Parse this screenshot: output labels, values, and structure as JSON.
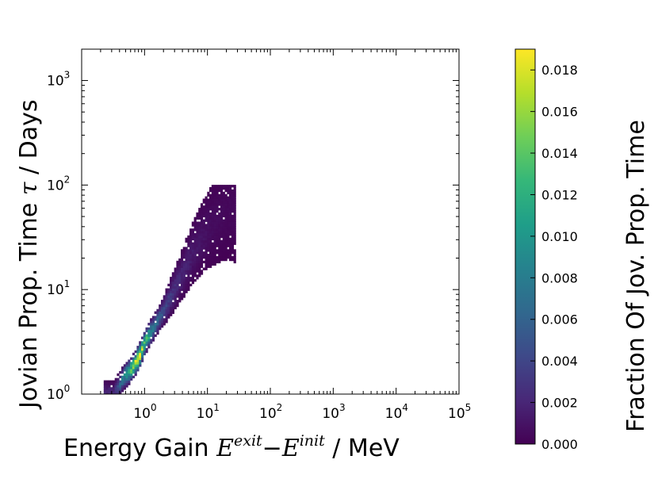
{
  "chart_data": {
    "type": "heatmap",
    "scale": "log-log 2D histogram",
    "xlabel": {
      "prefix": "Energy Gain ",
      "math_e": "E",
      "sup_exit": "exit",
      "minus": "−",
      "sup_init": "init",
      "suffix": " / MeV"
    },
    "ylabel": {
      "prefix": "Jovian Prop. Time ",
      "math_tau": "τ",
      "suffix": " / Days"
    },
    "x_range_log10": [
      -1.0,
      5.0
    ],
    "y_range_log10": [
      0.0,
      3.3
    ],
    "x_ticks": [
      {
        "base": "10",
        "exp": "0",
        "log": 0
      },
      {
        "base": "10",
        "exp": "1",
        "log": 1
      },
      {
        "base": "10",
        "exp": "2",
        "log": 2
      },
      {
        "base": "10",
        "exp": "3",
        "log": 3
      },
      {
        "base": "10",
        "exp": "4",
        "log": 4
      },
      {
        "base": "10",
        "exp": "5",
        "log": 5
      }
    ],
    "y_ticks": [
      {
        "base": "10",
        "exp": "0",
        "log": 0
      },
      {
        "base": "10",
        "exp": "1",
        "log": 1
      },
      {
        "base": "10",
        "exp": "2",
        "log": 2
      },
      {
        "base": "10",
        "exp": "3",
        "log": 3
      }
    ],
    "density_model": {
      "ridge": [
        {
          "log_x": -0.5,
          "log_y": 0.0,
          "v": 0.002
        },
        {
          "log_x": -0.35,
          "log_y": 0.15,
          "v": 0.008
        },
        {
          "log_x": -0.2,
          "log_y": 0.25,
          "v": 0.015
        },
        {
          "log_x": -0.1,
          "log_y": 0.35,
          "v": 0.018
        },
        {
          "log_x": 0.0,
          "log_y": 0.5,
          "v": 0.013
        },
        {
          "log_x": 0.15,
          "log_y": 0.65,
          "v": 0.007
        },
        {
          "log_x": 0.3,
          "log_y": 0.8,
          "v": 0.004
        },
        {
          "log_x": 0.55,
          "log_y": 1.1,
          "v": 0.002
        },
        {
          "log_x": 0.8,
          "log_y": 1.4,
          "v": 0.0012
        },
        {
          "log_x": 1.05,
          "log_y": 1.6,
          "v": 0.0006
        },
        {
          "log_x": 1.3,
          "log_y": 1.75,
          "v": 0.0004
        }
      ],
      "peak_value": 0.019
    },
    "colorbar": {
      "label": "Fraction Of Jov. Prop. Time",
      "colormap": "viridis",
      "range": [
        0.0,
        0.019
      ],
      "ticks": [
        "0.000",
        "0.002",
        "0.004",
        "0.006",
        "0.008",
        "0.010",
        "0.012",
        "0.014",
        "0.016",
        "0.018"
      ],
      "tick_values": [
        0.0,
        0.002,
        0.004,
        0.006,
        0.008,
        0.01,
        0.012,
        0.014,
        0.016,
        0.018
      ]
    },
    "colors": [
      "#440154",
      "#482878",
      "#3e4989",
      "#31688e",
      "#26828e",
      "#1f9e89",
      "#35b779",
      "#6ece58",
      "#b5de2b",
      "#fde725"
    ]
  }
}
